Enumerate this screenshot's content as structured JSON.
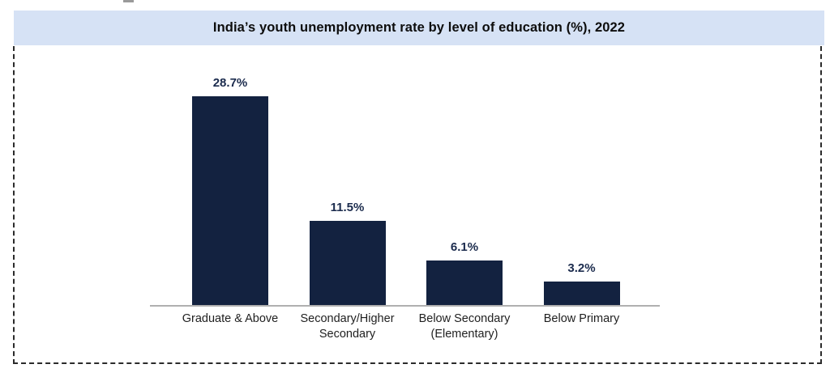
{
  "chart": {
    "title": "India’s youth unemployment rate by level of education (%), 2022"
  },
  "chart_data": {
    "type": "bar",
    "title": "India’s youth unemployment rate by level of education (%), 2022",
    "categories": [
      "Graduate & Above",
      "Secondary/Higher\nSecondary",
      "Below Secondary\n(Elementary)",
      "Below Primary"
    ],
    "values": [
      28.7,
      11.5,
      6.1,
      3.2
    ],
    "value_labels": [
      "28.7%",
      "11.5%",
      "6.1%",
      "3.2%"
    ],
    "xlabel": "",
    "ylabel": "",
    "ylim": [
      0,
      30
    ],
    "grid": false,
    "legend": false,
    "orientation": "vertical",
    "colors": {
      "bar": "#132240",
      "value_label": "#1b2b4d",
      "title_text": "#0d0d0d",
      "banner_background": "#d6e2f5",
      "axis_line": "#b0b0b0",
      "category_label": "#1f1f1f",
      "dashed_border": "#2b2b2b"
    }
  }
}
